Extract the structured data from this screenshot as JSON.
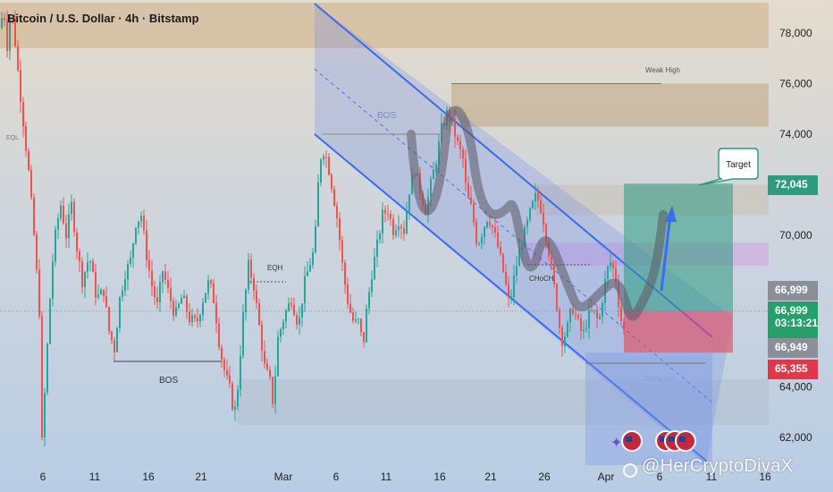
{
  "header": {
    "title": "Bitcoin / U.S. Dollar · 4h · Bitstamp"
  },
  "watermark": "@HerCryptoDivaX",
  "annotations": {
    "weak_high": "Weak High",
    "target": "Target",
    "bos_top": "BOS",
    "bos_bottom": "BOS",
    "eqh": "EQH",
    "eql": "EQL",
    "choch": "CHoCH",
    "strong_low": "Strong Low"
  },
  "price_tags": {
    "target": "72,045",
    "level_a": "66,999",
    "current": "66,999",
    "countdown": "03:13:21",
    "level_b": "66,949",
    "stop": "65,355"
  },
  "colors": {
    "up": "#26a69a",
    "down": "#ef5350",
    "channel": "#3b6cf0",
    "target_zone": "#2e9b7f",
    "stop_zone": "#e0384a"
  },
  "chart_data": {
    "type": "candlestick",
    "title": "Bitcoin / U.S. Dollar · 4h · Bitstamp",
    "y_ticks": [
      62000,
      64000,
      66000,
      68000,
      70000,
      72000,
      74000,
      76000,
      78000
    ],
    "y_tick_labels": [
      "62,000",
      "64,000",
      "",
      "",
      "70,000",
      "",
      "74,000",
      "76,000",
      "78,000"
    ],
    "x_ticks": [
      "6",
      "11",
      "16",
      "21",
      "Mar",
      "6",
      "11",
      "16",
      "21",
      "26",
      "Apr",
      "6",
      "11",
      "16"
    ],
    "ylim": [
      61200,
      79200
    ],
    "price_path": [
      [
        0,
        78200
      ],
      [
        4,
        79000
      ],
      [
        8,
        77500
      ],
      [
        12,
        79000
      ],
      [
        16,
        78000
      ],
      [
        20,
        76500
      ],
      [
        26,
        74500
      ],
      [
        32,
        72500
      ],
      [
        38,
        70000
      ],
      [
        44,
        67000
      ],
      [
        47,
        61800
      ],
      [
        52,
        65000
      ],
      [
        56,
        67500
      ],
      [
        60,
        69500
      ],
      [
        64,
        70500
      ],
      [
        68,
        71200
      ],
      [
        74,
        70000
      ],
      [
        80,
        71200
      ],
      [
        86,
        69500
      ],
      [
        92,
        68200
      ],
      [
        100,
        69200
      ],
      [
        108,
        67500
      ],
      [
        116,
        67800
      ],
      [
        122,
        66200
      ],
      [
        128,
        65500
      ],
      [
        134,
        67500
      ],
      [
        140,
        68500
      ],
      [
        146,
        69000
      ],
      [
        152,
        70500
      ],
      [
        158,
        70800
      ],
      [
        164,
        69200
      ],
      [
        170,
        68000
      ],
      [
        176,
        67200
      ],
      [
        182,
        68600
      ],
      [
        188,
        67800
      ],
      [
        196,
        66800
      ],
      [
        204,
        67600
      ],
      [
        212,
        66700
      ],
      [
        220,
        66500
      ],
      [
        228,
        67600
      ],
      [
        234,
        68200
      ],
      [
        240,
        67300
      ],
      [
        246,
        65500
      ],
      [
        252,
        64500
      ],
      [
        258,
        63800
      ],
      [
        262,
        62800
      ],
      [
        266,
        64000
      ],
      [
        272,
        66800
      ],
      [
        278,
        68800
      ],
      [
        284,
        68000
      ],
      [
        290,
        66400
      ],
      [
        296,
        64800
      ],
      [
        302,
        64200
      ],
      [
        306,
        63200
      ],
      [
        310,
        65800
      ],
      [
        318,
        66800
      ],
      [
        326,
        67500
      ],
      [
        334,
        66400
      ],
      [
        340,
        68000
      ],
      [
        346,
        68800
      ],
      [
        352,
        69500
      ],
      [
        356,
        72000
      ],
      [
        360,
        73500
      ],
      [
        366,
        73000
      ],
      [
        372,
        71800
      ],
      [
        378,
        70500
      ],
      [
        384,
        68500
      ],
      [
        390,
        67200
      ],
      [
        396,
        66500
      ],
      [
        402,
        66600
      ],
      [
        406,
        65500
      ],
      [
        410,
        67000
      ],
      [
        416,
        68500
      ],
      [
        422,
        69600
      ],
      [
        428,
        70800
      ],
      [
        434,
        71000
      ],
      [
        440,
        70200
      ],
      [
        446,
        70600
      ],
      [
        452,
        70200
      ],
      [
        458,
        71800
      ],
      [
        464,
        72600
      ],
      [
        470,
        71800
      ],
      [
        476,
        71000
      ],
      [
        482,
        72000
      ],
      [
        488,
        73000
      ],
      [
        494,
        74200
      ],
      [
        500,
        74800
      ],
      [
        506,
        74400
      ],
      [
        512,
        73600
      ],
      [
        518,
        73000
      ],
      [
        522,
        71600
      ],
      [
        528,
        71000
      ],
      [
        534,
        69600
      ],
      [
        540,
        70200
      ],
      [
        546,
        70800
      ],
      [
        552,
        70200
      ],
      [
        558,
        69400
      ],
      [
        564,
        68400
      ],
      [
        570,
        67200
      ],
      [
        576,
        68500
      ],
      [
        582,
        69500
      ],
      [
        588,
        70200
      ],
      [
        594,
        71000
      ],
      [
        600,
        71600
      ],
      [
        606,
        71000
      ],
      [
        612,
        69800
      ],
      [
        618,
        68400
      ],
      [
        624,
        67000
      ],
      [
        628,
        65800
      ],
      [
        634,
        66200
      ],
      [
        640,
        67200
      ],
      [
        646,
        66600
      ],
      [
        652,
        66000
      ],
      [
        658,
        66800
      ],
      [
        664,
        67000
      ],
      [
        670,
        66500
      ],
      [
        676,
        68000
      ],
      [
        682,
        69000
      ],
      [
        688,
        68500
      ],
      [
        694,
        66800
      ],
      [
        698,
        66200
      ],
      [
        702,
        67000
      ]
    ],
    "levels": {
      "weak_high": 76000,
      "target": 72045,
      "entry": 66999,
      "stop": 65355,
      "bos_low": 64950,
      "strong_low": 65100
    },
    "zones": [
      {
        "from": 77400,
        "to": 79200
      },
      {
        "from": 74300,
        "to": 76000
      },
      {
        "from": 70800,
        "to": 72000
      },
      {
        "from": 68800,
        "to": 69700
      },
      {
        "from": 62500,
        "to": 64300
      }
    ],
    "position": {
      "entry": 66999,
      "target": 72045,
      "stop": 65355
    }
  }
}
